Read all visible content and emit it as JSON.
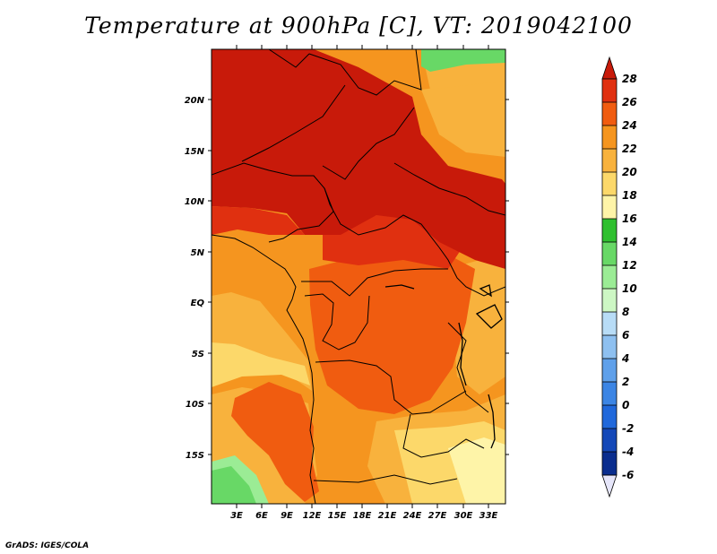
{
  "title": "Temperature at 900hPa [C], VT: 2019042100",
  "footer": "GrADS: IGES/COLA",
  "map": {
    "lat_labels": [
      "20N",
      "15N",
      "10N",
      "5N",
      "EQ",
      "5S",
      "10S",
      "15S"
    ],
    "lon_labels": [
      "3E",
      "6E",
      "9E",
      "12E",
      "15E",
      "18E",
      "21E",
      "24E",
      "27E",
      "30E",
      "33E"
    ]
  },
  "colorbar": {
    "labels": [
      "28",
      "26",
      "24",
      "22",
      "20",
      "18",
      "16",
      "14",
      "12",
      "10",
      "8",
      "6",
      "4",
      "2",
      "0",
      "-2",
      "-4",
      "-6"
    ],
    "colors": {
      "above": "#c81a0a",
      "c26_28": "#e03010",
      "c24_26": "#f05c10",
      "c22_24": "#f5951f",
      "c20_22": "#f8b23d",
      "c18_20": "#fcd86a",
      "c16_18": "#fef4a8",
      "c14_16": "#2fc02f",
      "c12_14": "#68d866",
      "c10_12": "#9bec95",
      "c8_10": "#cdf7c4",
      "c6_8": "#b8dcf6",
      "c4_6": "#8ec0f0",
      "c2_4": "#5fa0ea",
      "c0_2": "#3c85e4",
      "cm2_0": "#2068db",
      "cm4_m2": "#1448b8",
      "cm6_m4": "#0a2d8e",
      "below": "#e6e6fa"
    }
  }
}
